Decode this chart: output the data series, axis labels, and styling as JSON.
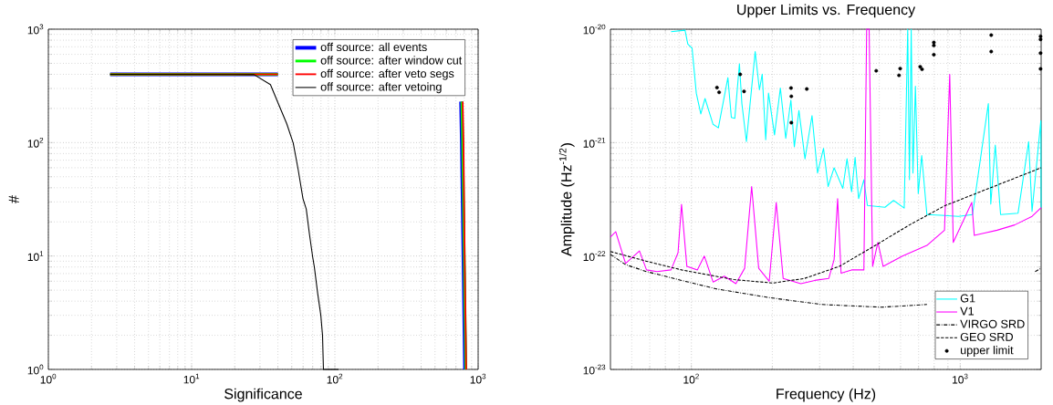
{
  "chart_data": [
    {
      "type": "line",
      "xlabel": "Significance",
      "ylabel": "#",
      "log": "xy",
      "grid": true,
      "legend": "top right",
      "marker": "none",
      "xlim": [
        1,
        1000
      ],
      "ylim": [
        1,
        1000
      ],
      "xticks": [
        {
          "value": 1,
          "label": "10$^{0}$"
        },
        {
          "value": 10,
          "label": "10$^{1}$"
        },
        {
          "value": 100,
          "label": "10$^{2}$"
        },
        {
          "value": 1000,
          "label": "10$^{3}$"
        }
      ],
      "yticks": [
        {
          "value": 1,
          "label": "10$^{0}$"
        },
        {
          "value": 10,
          "label": "10$^{1}$"
        },
        {
          "value": 100,
          "label": "10$^{2}$"
        },
        {
          "value": 1000,
          "label": "10$^{3}$"
        }
      ],
      "series": [
        {
          "name": "off source: all events",
          "color": "#0000ff",
          "x": [
            2.7,
            40,
            400,
            760,
            770,
            790,
            810
          ],
          "values": [
            400,
            400,
            null,
            230,
            100,
            10,
            1
          ]
        },
        {
          "name": "off source: after window cut",
          "color": "#00ff00",
          "x": [
            2.7,
            40,
            400,
            770,
            780,
            800,
            820
          ],
          "values": [
            400,
            400,
            null,
            230,
            100,
            10,
            1
          ]
        },
        {
          "name": "off source: after veto segs",
          "color": "#ff0000",
          "x": [
            2.7,
            40,
            400,
            780,
            790,
            805,
            825
          ],
          "values": [
            400,
            400,
            null,
            230,
            100,
            10,
            1
          ]
        },
        {
          "name": "off source: after vetoing",
          "color": "#000000",
          "x": [
            2.7,
            27.3,
            35.5,
            40.4,
            46.1,
            51.2,
            55.4,
            59.9,
            63.1,
            66.5,
            70.0,
            71.9,
            75.8,
            79.8,
            82.0,
            83.2,
            106
          ],
          "values": [
            400,
            397,
            325,
            219,
            147,
            99,
            58,
            32,
            26,
            15.5,
            9.8,
            8.0,
            4.7,
            3.0,
            2.0,
            1,
            1
          ]
        }
      ]
    },
    {
      "type": "line",
      "title": "Upper Limits vs. Frequency",
      "xlabel": "Frequency (Hz)",
      "ylabel": "Amplitude (Hz$^{-1/2}$)",
      "log": "xy",
      "grid": true,
      "legend": "bottom right",
      "xlim": [
        50,
        2000
      ],
      "ylim": [
        1e-23,
        1e-20
      ],
      "xticks": [
        {
          "value": 100,
          "label": "10$^{2}$"
        },
        {
          "value": 1000,
          "label": "10$^{3}$"
        }
      ],
      "yticks": [
        {
          "value": 1e-23,
          "label": "10$^{-23}$"
        },
        {
          "value": 1e-22,
          "label": "10$^{-22}$"
        },
        {
          "value": 1e-21,
          "label": "10$^{-21}$"
        },
        {
          "value": 1e-20,
          "label": "10$^{-20}$"
        }
      ],
      "series": [
        {
          "name": "G1",
          "color": "#00ffff",
          "marker": "none",
          "line_style": "solid",
          "x": [
            84.0,
            94.7,
            97.0,
            100.6,
            104.3,
            108.4,
            112.4,
            120.4,
            126.0,
            136.7,
            140.8,
            145.1,
            150.9,
            154.1,
            160.2,
            172.7,
            179.1,
            183.4,
            189.0,
            193.6,
            203.8,
            214.3,
            224.4,
            234.5,
            241.5,
            251.2,
            264.6,
            281.0,
            294.6,
            310.1,
            322.5,
            339.5,
            365.9,
            379.3,
            394.5,
            406.4,
            418.8,
            438.2,
            451.5,
            524.7,
            565,
            619,
            637.8,
            647.4,
            657.1,
            667.0,
            681.3,
            698,
            719,
            751.6,
            847.5,
            985,
            1111,
            1272,
            1299,
            1350,
            1413,
            1641,
            1797,
            1850,
            1995,
            2000
          ],
          "values": [
            9.5e-21,
            9.8e-21,
            7.4e-21,
            6.8e-21,
            2.73e-21,
            1.79e-21,
            2.45e-21,
            1.45e-21,
            1.35e-21,
            3.74e-21,
            1.67e-21,
            1.64e-21,
            4.95e-21,
            2.21e-21,
            1.02e-21,
            6.34e-21,
            2.92e-21,
            4.02e-21,
            1.06e-21,
            2.73e-21,
            1.17e-21,
            3.03e-21,
            1.09e-21,
            2.37e-21,
            9.2e-22,
            1.92e-21,
            7.2e-22,
            1.73e-21,
            5.4e-22,
            8.9e-22,
            4.1e-22,
            6e-22,
            3.95e-22,
            7.2e-22,
            3.69e-22,
            7.4e-22,
            3.21e-22,
            4.71e-22,
            2.79e-22,
            2.69e-22,
            3.09e-22,
            2.65e-22,
            1e-20,
            4.71e-22,
            1e-20,
            5.4e-22,
            3.14e-21,
            3.56e-22,
            7.7e-22,
            2.32e-22,
            2.29e-22,
            2.24e-22,
            2.32e-22,
            2.21e-21,
            2.87e-22,
            9.5e-22,
            2.32e-22,
            2.39e-22,
            1.02e-21,
            2.48e-22,
            1.56e-21,
            2.67e-22
          ]
        },
        {
          "name": "V1",
          "color": "#ff00ff",
          "marker": "none",
          "line_style": "solid",
          "x": [
            50,
            52.3,
            56.9,
            64.1,
            68.1,
            74.5,
            84.0,
            89.2,
            91.9,
            96.2,
            105.2,
            111.7,
            120.4,
            132.6,
            146.4,
            157.8,
            167.6,
            178.0,
            194.8,
            206.8,
            219.5,
            255.3,
            287.7,
            324.3,
            339.5,
            349.9,
            360.5,
            394.5,
            438.2,
            448.7,
            458.3,
            472.2,
            494,
            516.8,
            609.5,
            751.6,
            874,
            914,
            942,
            1104,
            1128,
            1371,
            1593,
            1850,
            2000
          ],
          "values": [
            1.47e-22,
            1.64e-22,
            8.6e-23,
            1.11e-22,
            7.55e-23,
            7.3e-23,
            7.55e-23,
            1.07e-22,
            2.86e-22,
            8.1e-23,
            7.55e-23,
            1e-22,
            5.9e-23,
            6.65e-23,
            5.7e-23,
            7.8e-23,
            4.1e-22,
            7.8e-23,
            6e-23,
            2.97e-22,
            6.34e-23,
            5.7e-23,
            6.1e-23,
            6.34e-23,
            9.3e-23,
            3.2e-22,
            7.05e-23,
            7.55e-23,
            7.55e-23,
            1e-20,
            1e-20,
            8.1e-23,
            1.32e-22,
            8.1e-23,
            1e-22,
            1.24e-22,
            1.69e-22,
            4e-21,
            1.32e-22,
            2.97e-22,
            1.52e-22,
            1.69e-22,
            1.88e-22,
            2.24e-22,
            2.67e-22
          ]
        },
        {
          "name": "VIRGO SRD",
          "color": "#000000",
          "marker": "none",
          "line_style": "dashdot",
          "x": [
            50,
            56.9,
            68.1,
            91.9,
            124,
            194.7,
            305.5,
            509,
            752,
            1016,
            1371,
            1900,
            2000
          ],
          "values": [
            1.035e-22,
            8.4e-23,
            7.3e-23,
            6.1e-23,
            5.13e-23,
            4.3e-23,
            3.74e-23,
            3.54e-23,
            3.74e-23,
            null,
            null,
            7.3e-23,
            7.8e-23
          ]
        },
        {
          "name": "GEO SRD",
          "color": "#000000",
          "marker": "none",
          "line_style": "dashed",
          "x": [
            50,
            68.1,
            91.9,
            144,
            200.7,
            263,
            355,
            480,
            647,
            874,
            2000
          ],
          "values": [
            1.096e-22,
            9e-23,
            7.55e-23,
            6.2e-23,
            5.78e-23,
            6.34e-23,
            8.1e-23,
            1.23e-22,
            1.88e-22,
            2.77e-22,
            6e-22
          ]
        },
        {
          "name": "upper limit",
          "type": "scatter",
          "color": "#000000",
          "marker": "circle",
          "x": [
            124.5,
            126.8,
            151.9,
            157,
            234.8,
            235.4,
            235.4,
            268.7,
            487,
            592,
            598,
            710,
            721,
            798,
            798,
            798,
            1304,
            1304,
            1990,
            1990,
            1990,
            1990
          ],
          "values": [
            3.06e-21,
            2.78e-21,
            4e-21,
            2.83e-21,
            3.03e-21,
            2.56e-21,
            1.5e-21,
            2.97e-21,
            4.3e-21,
            3.92e-21,
            4.5e-21,
            4.67e-21,
            4.44e-21,
            7.64e-21,
            7.19e-21,
            5.97e-21,
            8.87e-21,
            6.35e-21,
            8.65e-21,
            8.14e-21,
            6.16e-21,
            4.47e-21
          ]
        }
      ]
    }
  ]
}
